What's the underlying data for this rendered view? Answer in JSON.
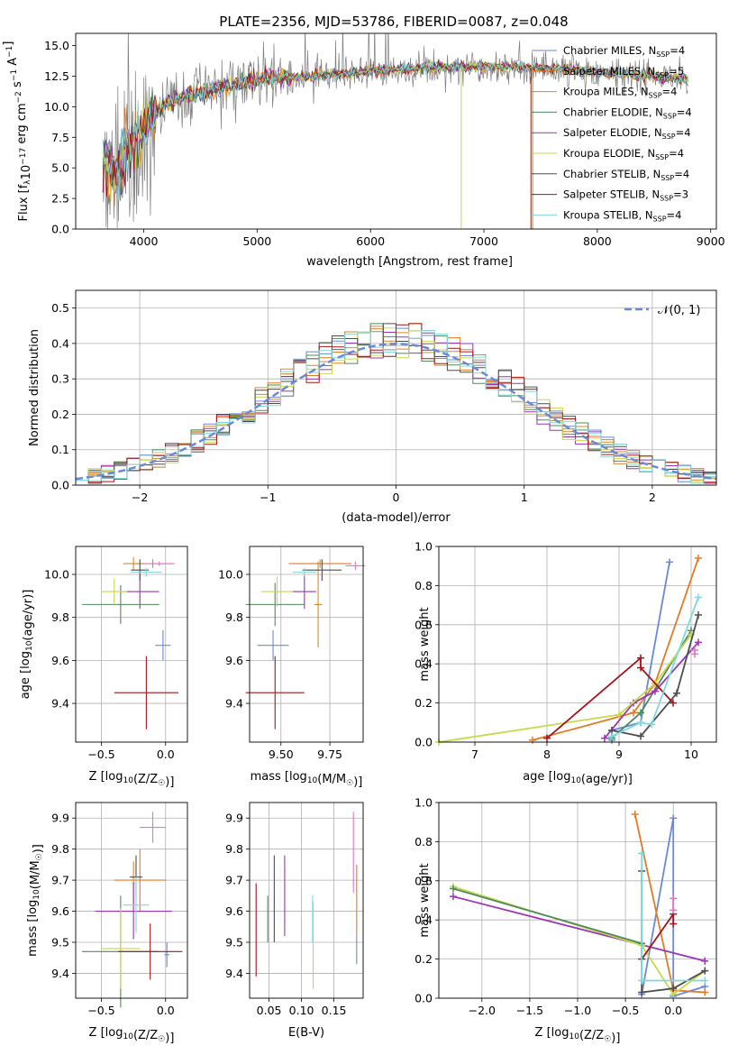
{
  "figure": {
    "title": "PLATE=2356, MJD=53786, FIBERID=0087, z=0.048"
  },
  "model_styles": [
    {
      "label": "Chabrier MILES, N",
      "sub": "SSP",
      "suffix": "=4",
      "color": "#6a89d6"
    },
    {
      "label": "Salpeter MILES, N",
      "sub": "SSP",
      "suffix": "=5",
      "color": "#e57a22"
    },
    {
      "label": "Kroupa MILES, N",
      "sub": "SSP",
      "suffix": "=4",
      "color": "#d38a2a"
    },
    {
      "label": "Chabrier ELODIE, N",
      "sub": "SSP",
      "suffix": "=4",
      "color": "#4e8a5c"
    },
    {
      "label": "Salpeter ELODIE, N",
      "sub": "SSP",
      "suffix": "=4",
      "color": "#9a35b5"
    },
    {
      "label": "Kroupa ELODIE, N",
      "sub": "SSP",
      "suffix": "=4",
      "color": "#c8d84a"
    },
    {
      "label": "Chabrier STELIB, N",
      "sub": "SSP",
      "suffix": "=4",
      "color": "#4d4d4d"
    },
    {
      "label": "Salpeter STELIB, N",
      "sub": "SSP",
      "suffix": "=3",
      "color": "#a3161c"
    },
    {
      "label": "Kroupa STELIB, N",
      "sub": "SSP",
      "suffix": "=4",
      "color": "#7fd8dc"
    }
  ],
  "chart_data": [
    {
      "type": "line",
      "panel": "spectrum",
      "xlabel": "wavelength [Angstrom, rest frame]",
      "ylabel": "Flux [f",
      "ylabel_sub": "λ",
      "ylabel_mid": "10",
      "ylabel_sup": "−17",
      "ylabel_rest": " erg cm",
      "ylabel_sup2": "−2",
      "ylabel_rest2": " s",
      "ylabel_sup3": "−1",
      "ylabel_rest3": " A",
      "ylabel_sup4": "−1",
      "ylabel_end": "]",
      "xlim": [
        3400,
        9050
      ],
      "ylim": [
        0,
        16
      ],
      "xticks": [
        4000,
        5000,
        6000,
        7000,
        8000,
        9000
      ],
      "yticks": [
        0.0,
        2.5,
        5.0,
        7.5,
        10.0,
        12.5,
        15.0
      ],
      "ytick_labels": [
        "0.0",
        "2.5",
        "5.0",
        "7.5",
        "10.0",
        "12.5",
        "15.0"
      ],
      "continuum": [
        [
          3640,
          6.0
        ],
        [
          3750,
          4.8
        ],
        [
          3850,
          6.8
        ],
        [
          3950,
          8.0
        ],
        [
          4050,
          9.0
        ],
        [
          4150,
          10.0
        ],
        [
          4300,
          10.6
        ],
        [
          4500,
          11.2
        ],
        [
          4800,
          11.8
        ],
        [
          5100,
          12.3
        ],
        [
          5500,
          12.5
        ],
        [
          6000,
          12.9
        ],
        [
          6500,
          13.2
        ],
        [
          7000,
          13.3
        ],
        [
          7400,
          13.2
        ],
        [
          7800,
          13.0
        ],
        [
          8200,
          12.7
        ],
        [
          8600,
          12.4
        ],
        [
          8800,
          12.3
        ]
      ],
      "data_range": [
        3640,
        8800
      ],
      "model_range": [
        3640,
        8800
      ],
      "dropouts": [
        {
          "x": 6800,
          "color": "#c8d84a",
          "y_to": 0.0
        },
        {
          "x": 7430,
          "color": "#e57a22",
          "y_to": 0.0
        },
        {
          "x": 7415,
          "color": "#a3161c",
          "y_to": 0.0
        }
      ],
      "grid": false,
      "legend_position": "upper-right"
    },
    {
      "type": "histogram",
      "panel": "residuals",
      "xlabel": "(data-model)/error",
      "ylabel": "Normed distribution",
      "xlim": [
        -2.5,
        2.5
      ],
      "ylim": [
        0,
        0.55
      ],
      "xticks": [
        -2,
        -1,
        0,
        1,
        2
      ],
      "xtick_labels": [
        "−2",
        "−1",
        "0",
        "1",
        "2"
      ],
      "yticks": [
        0.0,
        0.1,
        0.2,
        0.3,
        0.4,
        0.5
      ],
      "ytick_labels": [
        "0.0",
        "0.1",
        "0.2",
        "0.3",
        "0.4",
        "0.5"
      ],
      "bin_width": 0.1,
      "reference_curve": {
        "name": "𝒩(0, 1)",
        "color": "#6a89d6",
        "style": "dashed"
      },
      "grid": true,
      "legend_position": "upper-right"
    },
    {
      "type": "scatter-errorbar",
      "panel": "age-vs-metallicity",
      "xlabel": "Z [log",
      "xlabel_sub": "10",
      "xlabel_rest": "(Z/Z",
      "xlabel_sub2": "☉",
      "xlabel_end": ")]",
      "ylabel": "age  [log",
      "ylabel_sub": "10",
      "ylabel_rest": "(age/yr)]",
      "xlim": [
        -0.7,
        0.17
      ],
      "ylim": [
        9.22,
        10.13
      ],
      "xticks": [
        -0.5,
        0.0
      ],
      "xtick_labels": [
        "−0.5",
        "0.0"
      ],
      "yticks": [
        9.4,
        9.6,
        9.8,
        10.0
      ],
      "ytick_labels": [
        "9.4",
        "9.6",
        "9.8",
        "10.0"
      ],
      "points": [
        {
          "x": -0.02,
          "y": 9.67,
          "xerr": 0.06,
          "yerr": 0.07,
          "color": "#6a89d6"
        },
        {
          "x": -0.1,
          "y": 10.05,
          "xerr": 0.16,
          "yerr": 0.02,
          "color": "#e57a22"
        },
        {
          "x": -0.25,
          "y": 10.05,
          "xerr": 0.08,
          "yerr": 0.03,
          "color": "#d38a2a"
        },
        {
          "x": -0.35,
          "y": 9.86,
          "xerr": 0.3,
          "yerr": 0.09,
          "color": "#4e8a5c"
        },
        {
          "x": -0.2,
          "y": 9.92,
          "xerr": 0.15,
          "yerr": 0.08,
          "color": "#9a35b5"
        },
        {
          "x": -0.4,
          "y": 9.92,
          "xerr": 0.1,
          "yerr": 0.06,
          "color": "#c8d84a"
        },
        {
          "x": -0.2,
          "y": 10.02,
          "xerr": 0.07,
          "yerr": 0.05,
          "color": "#4d4d4d"
        },
        {
          "x": -0.15,
          "y": 9.45,
          "xerr": 0.25,
          "yerr": 0.17,
          "color": "#a3161c"
        },
        {
          "x": -0.15,
          "y": 10.01,
          "xerr": 0.12,
          "yerr": 0.02,
          "color": "#7fd8dc"
        },
        {
          "x": -0.05,
          "y": 10.05,
          "xerr": 0.12,
          "yerr": 0.01,
          "color": "#e377c2"
        }
      ],
      "grid": true
    },
    {
      "type": "scatter-errorbar",
      "panel": "age-vs-mass",
      "xlabel": "mass [log",
      "xlabel_sub": "10",
      "xlabel_rest": "(M/M",
      "xlabel_sub2": "☉",
      "xlabel_end": ")]",
      "xlim": [
        9.34,
        9.92
      ],
      "ylim": [
        9.22,
        10.13
      ],
      "xticks": [
        9.5,
        9.75
      ],
      "xtick_labels": [
        "9.50",
        "9.75"
      ],
      "yticks": [
        9.4,
        9.6,
        9.8,
        10.0
      ],
      "ytick_labels": [
        "9.4",
        "9.6",
        "9.8",
        "10.0"
      ],
      "points": [
        {
          "x": 9.46,
          "y": 9.67,
          "xerr": 0.08,
          "yerr": 0.07,
          "color": "#6a89d6"
        },
        {
          "x": 9.7,
          "y": 10.05,
          "xerr": 0.16,
          "yerr": 0.02,
          "color": "#e57a22"
        },
        {
          "x": 9.69,
          "y": 9.86,
          "xerr": 0.02,
          "yerr": 0.2,
          "color": "#d38a2a"
        },
        {
          "x": 9.47,
          "y": 9.86,
          "xerr": 0.15,
          "yerr": 0.1,
          "color": "#4e8a5c"
        },
        {
          "x": 9.62,
          "y": 9.92,
          "xerr": 0.06,
          "yerr": 0.08,
          "color": "#9a35b5"
        },
        {
          "x": 9.48,
          "y": 9.92,
          "xerr": 0.08,
          "yerr": 0.07,
          "color": "#c8d84a"
        },
        {
          "x": 9.71,
          "y": 10.02,
          "xerr": 0.1,
          "yerr": 0.05,
          "color": "#4d4d4d"
        },
        {
          "x": 9.47,
          "y": 9.45,
          "xerr": 0.15,
          "yerr": 0.17,
          "color": "#a3161c"
        },
        {
          "x": 9.62,
          "y": 10.01,
          "xerr": 0.06,
          "yerr": 0.02,
          "color": "#7fd8dc"
        },
        {
          "x": 9.88,
          "y": 10.04,
          "xerr": 0.05,
          "yerr": 0.02,
          "color": "#e377c2"
        }
      ],
      "grid": true
    },
    {
      "type": "line",
      "panel": "mass-weight-vs-age",
      "xlabel": "age  [log",
      "xlabel_sub": "10",
      "xlabel_rest": "(age/yr)]",
      "ylabel": "mass weight",
      "xlim": [
        6.5,
        10.35
      ],
      "ylim": [
        0,
        1
      ],
      "xticks": [
        7,
        8,
        9,
        10
      ],
      "xtick_labels": [
        "7",
        "8",
        "9",
        "10"
      ],
      "yticks": [
        0.0,
        0.2,
        0.4,
        0.6,
        0.8,
        1.0
      ],
      "ytick_labels": [
        "0.0",
        "0.2",
        "0.4",
        "0.6",
        "0.8",
        "1.0"
      ],
      "series": [
        {
          "color": "#6a89d6",
          "points": [
            [
              8.9,
              0.01
            ],
            [
              8.9,
              0.06
            ],
            [
              9.3,
              0.1
            ],
            [
              9.7,
              0.92
            ]
          ]
        },
        {
          "color": "#e57a22",
          "points": [
            [
              7.8,
              0.01
            ],
            [
              9.2,
              0.15
            ],
            [
              9.5,
              0.3
            ],
            [
              10.1,
              0.94
            ]
          ]
        },
        {
          "color": "#4e8a5c",
          "points": [
            [
              8.9,
              0.02
            ],
            [
              9.3,
              0.15
            ],
            [
              10.0,
              0.57
            ]
          ]
        },
        {
          "color": "#9a35b5",
          "points": [
            [
              8.8,
              0.02
            ],
            [
              9.2,
              0.2
            ],
            [
              9.5,
              0.26
            ],
            [
              10.1,
              0.51
            ]
          ]
        },
        {
          "color": "#c8d84a",
          "points": [
            [
              6.5,
              0.0
            ],
            [
              9.0,
              0.14
            ],
            [
              9.5,
              0.3
            ],
            [
              10.0,
              0.55
            ]
          ]
        },
        {
          "color": "#4d4d4d",
          "points": [
            [
              8.9,
              0.06
            ],
            [
              9.3,
              0.03
            ],
            [
              9.8,
              0.25
            ],
            [
              10.1,
              0.65
            ]
          ]
        },
        {
          "color": "#a3161c",
          "points": [
            [
              8.0,
              0.02
            ],
            [
              9.3,
              0.43
            ],
            [
              9.3,
              0.38
            ],
            [
              9.75,
              0.2
            ]
          ]
        },
        {
          "color": "#7fd8dc",
          "points": [
            [
              8.9,
              0.03
            ],
            [
              9.3,
              0.1
            ],
            [
              9.45,
              0.09
            ],
            [
              10.1,
              0.74
            ]
          ]
        },
        {
          "color": "#e377c2",
          "points": [
            [
              10.05,
              0.45
            ],
            [
              10.05,
              0.47
            ]
          ]
        }
      ],
      "grid": true
    },
    {
      "type": "scatter-errorbar",
      "panel": "mass-vs-metallicity",
      "xlabel": "Z [log",
      "xlabel_sub": "10",
      "xlabel_rest": "(Z/Z",
      "xlabel_sub2": "☉",
      "xlabel_end": ")]",
      "ylabel": "mass [log",
      "ylabel_sub": "10",
      "ylabel_rest": "(M/M",
      "ylabel_sub2": "☉",
      "ylabel_end": ")]",
      "xlim": [
        -0.7,
        0.17
      ],
      "ylim": [
        9.32,
        9.95
      ],
      "xticks": [
        -0.5,
        0.0
      ],
      "xtick_labels": [
        "−0.5",
        "0.0"
      ],
      "yticks": [
        9.4,
        9.5,
        9.6,
        9.7,
        9.8,
        9.9
      ],
      "ytick_labels": [
        "9.4",
        "9.5",
        "9.6",
        "9.7",
        "9.8",
        "9.9"
      ],
      "points": [
        {
          "x": 0.01,
          "y": 9.46,
          "xerr": 0.02,
          "yerr": 0.04,
          "color": "#6a89d6"
        },
        {
          "x": -0.2,
          "y": 9.7,
          "xerr": 0.2,
          "yerr": 0.1,
          "color": "#e57a22"
        },
        {
          "x": -0.25,
          "y": 9.69,
          "xerr": 0.01,
          "yerr": 0.07,
          "color": "#d38a2a"
        },
        {
          "x": -0.35,
          "y": 9.47,
          "xerr": 0.3,
          "yerr": 0.18,
          "color": "#4e8a5c"
        },
        {
          "x": -0.25,
          "y": 9.6,
          "xerr": 0.3,
          "yerr": 0.09,
          "color": "#9a35b5"
        },
        {
          "x": -0.35,
          "y": 9.48,
          "xerr": 0.15,
          "yerr": 0.13,
          "color": "#c8d84a"
        },
        {
          "x": -0.23,
          "y": 9.71,
          "xerr": 0.05,
          "yerr": 0.07,
          "color": "#4d4d4d"
        },
        {
          "x": -0.12,
          "y": 9.47,
          "xerr": 0.25,
          "yerr": 0.09,
          "color": "#a3161c"
        },
        {
          "x": -0.23,
          "y": 9.62,
          "xerr": 0.1,
          "yerr": 0.09,
          "color": "#7fd8dc"
        },
        {
          "x": -0.1,
          "y": 9.87,
          "xerr": 0.1,
          "yerr": 0.05,
          "color": "#e377c2"
        }
      ],
      "grid": true
    },
    {
      "type": "errorbar",
      "panel": "mass-vs-extinction",
      "xlabel": "E(B-V)",
      "xlim": [
        0.02,
        0.195
      ],
      "ylim": [
        9.32,
        9.95
      ],
      "xticks": [
        0.05,
        0.1,
        0.15
      ],
      "xtick_labels": [
        "0.05",
        "0.10",
        "0.15"
      ],
      "yticks": [
        9.4,
        9.5,
        9.6,
        9.7,
        9.8,
        9.9
      ],
      "ytick_labels": [
        "9.4",
        "9.5",
        "9.6",
        "9.7",
        "9.8",
        "9.9"
      ],
      "bars": [
        {
          "x": 0.185,
          "y_lo": 9.43,
          "y_hi": 9.52,
          "color": "#6a89d6"
        },
        {
          "x": 0.185,
          "y_lo": 9.52,
          "y_hi": 9.75,
          "color": "#e57a22"
        },
        {
          "x": 0.048,
          "y_lo": 9.5,
          "y_hi": 9.65,
          "color": "#4e8a5c"
        },
        {
          "x": 0.074,
          "y_lo": 9.52,
          "y_hi": 9.78,
          "color": "#9a35b5"
        },
        {
          "x": 0.118,
          "y_lo": 9.35,
          "y_hi": 9.63,
          "color": "#c8d84a"
        },
        {
          "x": 0.058,
          "y_lo": 9.5,
          "y_hi": 9.78,
          "color": "#4d4d4d"
        },
        {
          "x": 0.03,
          "y_lo": 9.39,
          "y_hi": 9.69,
          "color": "#a3161c"
        },
        {
          "x": 0.117,
          "y_lo": 9.5,
          "y_hi": 9.65,
          "color": "#7fd8dc"
        },
        {
          "x": 0.18,
          "y_lo": 9.66,
          "y_hi": 9.92,
          "color": "#e377c2"
        }
      ],
      "grid": true
    },
    {
      "type": "line",
      "panel": "mass-weight-vs-metallicity",
      "xlabel": "Z [log",
      "xlabel_sub": "10",
      "xlabel_rest": "(Z/Z",
      "xlabel_sub2": "☉",
      "xlabel_end": ")]",
      "ylabel": "mass weight",
      "xlim": [
        -2.45,
        0.45
      ],
      "ylim": [
        0,
        1
      ],
      "xticks": [
        -2.0,
        -1.5,
        -1.0,
        -0.5,
        0.0
      ],
      "xtick_labels": [
        "−2.0",
        "−1.5",
        "−1.0",
        "−0.5",
        "0.0"
      ],
      "yticks": [
        0.0,
        0.2,
        0.4,
        0.6,
        0.8,
        1.0
      ],
      "ytick_labels": [
        "0.0",
        "0.2",
        "0.4",
        "0.6",
        "0.8",
        "1.0"
      ],
      "series": [
        {
          "color": "#6a89d6",
          "points": [
            [
              -0.33,
              0.02
            ],
            [
              0.0,
              0.92
            ],
            [
              0.0,
              0.01
            ],
            [
              0.33,
              0.06
            ]
          ]
        },
        {
          "color": "#e57a22",
          "points": [
            [
              -0.4,
              0.94
            ],
            [
              0.0,
              0.04
            ],
            [
              0.33,
              0.03
            ]
          ]
        },
        {
          "color": "#9a35b5",
          "points": [
            [
              -2.3,
              0.52
            ],
            [
              0.33,
              0.19
            ]
          ]
        },
        {
          "color": "#c8d84a",
          "points": [
            [
              -2.3,
              0.57
            ],
            [
              -0.33,
              0.27
            ],
            [
              0.0,
              0.02
            ],
            [
              0.33,
              0.14
            ]
          ]
        },
        {
          "color": "#4e8a5c",
          "points": [
            [
              -2.3,
              0.56
            ],
            [
              -0.33,
              0.28
            ]
          ]
        },
        {
          "color": "#4d4d4d",
          "points": [
            [
              -0.33,
              0.65
            ],
            [
              -0.33,
              0.03
            ],
            [
              0.0,
              0.05
            ],
            [
              0.33,
              0.14
            ]
          ]
        },
        {
          "color": "#a3161c",
          "points": [
            [
              -0.33,
              0.2
            ],
            [
              0.0,
              0.43
            ],
            [
              0.0,
              0.38
            ]
          ]
        },
        {
          "color": "#7fd8dc",
          "points": [
            [
              -0.33,
              0.74
            ],
            [
              -0.33,
              0.09
            ],
            [
              0.33,
              0.09
            ]
          ]
        },
        {
          "color": "#e377c2",
          "points": [
            [
              0.0,
              0.51
            ],
            [
              0.0,
              0.45
            ]
          ]
        }
      ],
      "grid": true
    }
  ]
}
